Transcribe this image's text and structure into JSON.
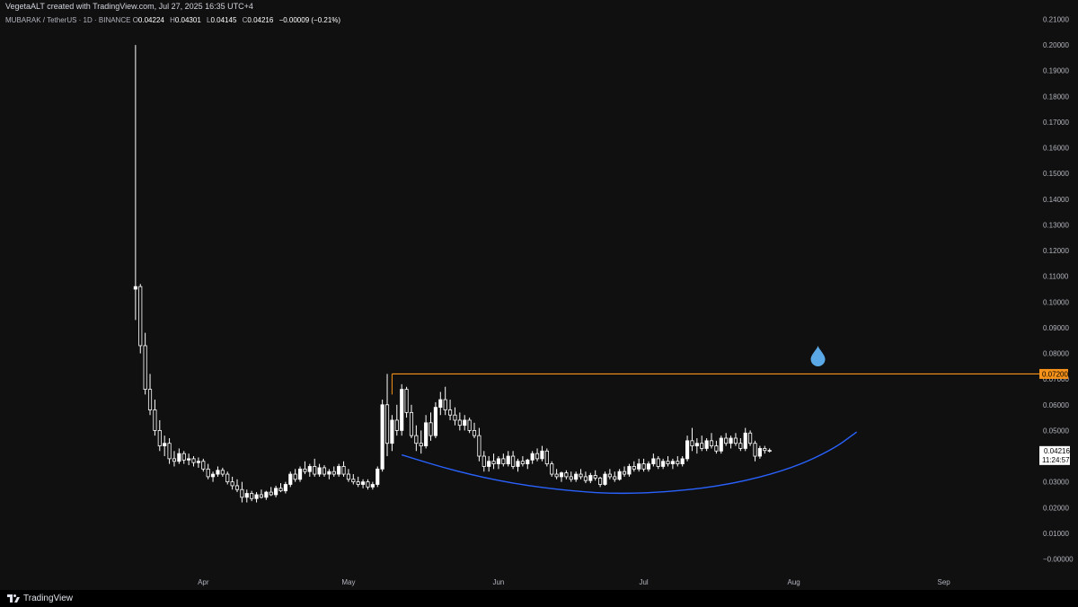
{
  "header": {
    "created_by": "VegetaALT created with TradingView.com, Jul 27, 2025 16:35 UTC+4"
  },
  "symbol": {
    "name": "MUBARAK / TetherUS · 1D · BINANCE",
    "o_key": "O",
    "o_val": "0.04224",
    "h_key": "H",
    "h_val": "0.04301",
    "l_key": "L",
    "l_val": "0.04145",
    "c_key": "C",
    "c_val": "0.04216",
    "change": "−0.00009 (−0.21%)"
  },
  "brand": {
    "label": "TradingView"
  },
  "colors": {
    "background": "#101010",
    "candle": "#ffffff",
    "resistance_line": "#f7931a",
    "curve": "#2962ff",
    "drop_icon": "#5aa9e6",
    "price_badge": "#f7931a"
  },
  "icons": {
    "drop": "water-drop-icon"
  },
  "chart_data": {
    "type": "candlestick",
    "y_ticks": [
      "0.21000",
      "0.20000",
      "0.19000",
      "0.18000",
      "0.17000",
      "0.16000",
      "0.15000",
      "0.14000",
      "0.13000",
      "0.12000",
      "0.11000",
      "0.10000",
      "0.09000",
      "0.08000",
      "0.07000",
      "0.06000",
      "0.05000",
      "0.04000",
      "0.03000",
      "0.02000",
      "0.01000",
      "−0.00000"
    ],
    "x_ticks": [
      {
        "label": "Apr",
        "date": "2025-04-01"
      },
      {
        "label": "May",
        "date": "2025-05-01"
      },
      {
        "label": "Jun",
        "date": "2025-06-01"
      },
      {
        "label": "Jul",
        "date": "2025-07-01"
      },
      {
        "label": "Aug",
        "date": "2025-08-01"
      },
      {
        "label": "Sep",
        "date": "2025-09-01"
      }
    ],
    "ylim": [
      0.0,
      0.21
    ],
    "xlim": [
      "2025-02-18",
      "2025-09-20"
    ],
    "grid": false,
    "resistance": {
      "value": 0.072,
      "label": "0.07200",
      "from": "2025-05-10"
    },
    "last_price": {
      "value": 0.04216,
      "label": "0.04216",
      "countdown": "11:24:57"
    },
    "curve_points": [
      {
        "date": "2025-05-12",
        "value": 0.0405
      },
      {
        "date": "2025-05-23",
        "value": 0.0342
      },
      {
        "date": "2025-06-04",
        "value": 0.0293
      },
      {
        "date": "2025-06-16",
        "value": 0.0264
      },
      {
        "date": "2025-06-26",
        "value": 0.0253
      },
      {
        "date": "2025-07-07",
        "value": 0.0262
      },
      {
        "date": "2025-07-19",
        "value": 0.029
      },
      {
        "date": "2025-07-31",
        "value": 0.0348
      },
      {
        "date": "2025-08-09",
        "value": 0.0425
      },
      {
        "date": "2025-08-14",
        "value": 0.0494
      }
    ],
    "ohlc": [
      {
        "date": "2025-03-18",
        "o": 0.105,
        "h": 0.2,
        "l": 0.093,
        "c": 0.106
      },
      {
        "date": "2025-03-19",
        "o": 0.106,
        "h": 0.107,
        "l": 0.08,
        "c": 0.083
      },
      {
        "date": "2025-03-20",
        "o": 0.083,
        "h": 0.088,
        "l": 0.064,
        "c": 0.066
      },
      {
        "date": "2025-03-21",
        "o": 0.066,
        "h": 0.072,
        "l": 0.056,
        "c": 0.058
      },
      {
        "date": "2025-03-22",
        "o": 0.058,
        "h": 0.062,
        "l": 0.048,
        "c": 0.05
      },
      {
        "date": "2025-03-23",
        "o": 0.05,
        "h": 0.054,
        "l": 0.042,
        "c": 0.044
      },
      {
        "date": "2025-03-24",
        "o": 0.044,
        "h": 0.048,
        "l": 0.04,
        "c": 0.045
      },
      {
        "date": "2025-03-25",
        "o": 0.045,
        "h": 0.047,
        "l": 0.037,
        "c": 0.039
      },
      {
        "date": "2025-03-26",
        "o": 0.039,
        "h": 0.042,
        "l": 0.036,
        "c": 0.038
      },
      {
        "date": "2025-03-27",
        "o": 0.038,
        "h": 0.043,
        "l": 0.037,
        "c": 0.041
      },
      {
        "date": "2025-03-28",
        "o": 0.041,
        "h": 0.042,
        "l": 0.037,
        "c": 0.0385
      },
      {
        "date": "2025-03-29",
        "o": 0.0385,
        "h": 0.041,
        "l": 0.0365,
        "c": 0.039
      },
      {
        "date": "2025-03-30",
        "o": 0.039,
        "h": 0.04,
        "l": 0.036,
        "c": 0.0375
      },
      {
        "date": "2025-03-31",
        "o": 0.0375,
        "h": 0.0395,
        "l": 0.0355,
        "c": 0.038
      },
      {
        "date": "2025-04-01",
        "o": 0.038,
        "h": 0.039,
        "l": 0.034,
        "c": 0.035
      },
      {
        "date": "2025-04-02",
        "o": 0.035,
        "h": 0.037,
        "l": 0.031,
        "c": 0.032
      },
      {
        "date": "2025-04-03",
        "o": 0.032,
        "h": 0.034,
        "l": 0.03,
        "c": 0.033
      },
      {
        "date": "2025-04-04",
        "o": 0.033,
        "h": 0.036,
        "l": 0.032,
        "c": 0.0345
      },
      {
        "date": "2025-04-05",
        "o": 0.0345,
        "h": 0.0355,
        "l": 0.032,
        "c": 0.033
      },
      {
        "date": "2025-04-06",
        "o": 0.033,
        "h": 0.034,
        "l": 0.029,
        "c": 0.03
      },
      {
        "date": "2025-04-07",
        "o": 0.03,
        "h": 0.032,
        "l": 0.027,
        "c": 0.0285
      },
      {
        "date": "2025-04-08",
        "o": 0.0285,
        "h": 0.031,
        "l": 0.026,
        "c": 0.027
      },
      {
        "date": "2025-04-09",
        "o": 0.027,
        "h": 0.03,
        "l": 0.022,
        "c": 0.024
      },
      {
        "date": "2025-04-10",
        "o": 0.024,
        "h": 0.027,
        "l": 0.022,
        "c": 0.0255
      },
      {
        "date": "2025-04-11",
        "o": 0.0255,
        "h": 0.0265,
        "l": 0.0225,
        "c": 0.0235
      },
      {
        "date": "2025-04-12",
        "o": 0.0235,
        "h": 0.026,
        "l": 0.022,
        "c": 0.025
      },
      {
        "date": "2025-04-13",
        "o": 0.025,
        "h": 0.027,
        "l": 0.0235,
        "c": 0.024
      },
      {
        "date": "2025-04-14",
        "o": 0.024,
        "h": 0.0265,
        "l": 0.023,
        "c": 0.026
      },
      {
        "date": "2025-04-15",
        "o": 0.026,
        "h": 0.028,
        "l": 0.0245,
        "c": 0.025
      },
      {
        "date": "2025-04-16",
        "o": 0.025,
        "h": 0.0285,
        "l": 0.024,
        "c": 0.0275
      },
      {
        "date": "2025-04-17",
        "o": 0.0275,
        "h": 0.0295,
        "l": 0.026,
        "c": 0.0265
      },
      {
        "date": "2025-04-18",
        "o": 0.0265,
        "h": 0.03,
        "l": 0.0255,
        "c": 0.029
      },
      {
        "date": "2025-04-19",
        "o": 0.029,
        "h": 0.034,
        "l": 0.028,
        "c": 0.033
      },
      {
        "date": "2025-04-20",
        "o": 0.033,
        "h": 0.035,
        "l": 0.03,
        "c": 0.031
      },
      {
        "date": "2025-04-21",
        "o": 0.031,
        "h": 0.036,
        "l": 0.03,
        "c": 0.035
      },
      {
        "date": "2025-04-22",
        "o": 0.035,
        "h": 0.038,
        "l": 0.033,
        "c": 0.034
      },
      {
        "date": "2025-04-23",
        "o": 0.034,
        "h": 0.037,
        "l": 0.032,
        "c": 0.036
      },
      {
        "date": "2025-04-24",
        "o": 0.036,
        "h": 0.039,
        "l": 0.032,
        "c": 0.033
      },
      {
        "date": "2025-04-25",
        "o": 0.033,
        "h": 0.037,
        "l": 0.032,
        "c": 0.0355
      },
      {
        "date": "2025-04-26",
        "o": 0.0355,
        "h": 0.0365,
        "l": 0.032,
        "c": 0.033
      },
      {
        "date": "2025-04-27",
        "o": 0.033,
        "h": 0.035,
        "l": 0.031,
        "c": 0.034
      },
      {
        "date": "2025-04-28",
        "o": 0.034,
        "h": 0.036,
        "l": 0.032,
        "c": 0.033
      },
      {
        "date": "2025-04-29",
        "o": 0.033,
        "h": 0.037,
        "l": 0.032,
        "c": 0.036
      },
      {
        "date": "2025-04-30",
        "o": 0.036,
        "h": 0.038,
        "l": 0.032,
        "c": 0.033
      },
      {
        "date": "2025-05-01",
        "o": 0.033,
        "h": 0.035,
        "l": 0.03,
        "c": 0.031
      },
      {
        "date": "2025-05-02",
        "o": 0.031,
        "h": 0.033,
        "l": 0.029,
        "c": 0.03
      },
      {
        "date": "2025-05-03",
        "o": 0.03,
        "h": 0.032,
        "l": 0.028,
        "c": 0.029
      },
      {
        "date": "2025-05-04",
        "o": 0.029,
        "h": 0.031,
        "l": 0.0275,
        "c": 0.03
      },
      {
        "date": "2025-05-05",
        "o": 0.03,
        "h": 0.031,
        "l": 0.027,
        "c": 0.028
      },
      {
        "date": "2025-05-06",
        "o": 0.028,
        "h": 0.03,
        "l": 0.027,
        "c": 0.029
      },
      {
        "date": "2025-05-07",
        "o": 0.029,
        "h": 0.036,
        "l": 0.028,
        "c": 0.035
      },
      {
        "date": "2025-05-08",
        "o": 0.035,
        "h": 0.062,
        "l": 0.034,
        "c": 0.06
      },
      {
        "date": "2025-05-09",
        "o": 0.06,
        "h": 0.072,
        "l": 0.04,
        "c": 0.045
      },
      {
        "date": "2025-05-10",
        "o": 0.045,
        "h": 0.056,
        "l": 0.042,
        "c": 0.054
      },
      {
        "date": "2025-05-11",
        "o": 0.054,
        "h": 0.06,
        "l": 0.048,
        "c": 0.05
      },
      {
        "date": "2025-05-12",
        "o": 0.05,
        "h": 0.068,
        "l": 0.048,
        "c": 0.066
      },
      {
        "date": "2025-05-13",
        "o": 0.066,
        "h": 0.067,
        "l": 0.055,
        "c": 0.057
      },
      {
        "date": "2025-05-14",
        "o": 0.057,
        "h": 0.06,
        "l": 0.047,
        "c": 0.048
      },
      {
        "date": "2025-05-15",
        "o": 0.048,
        "h": 0.052,
        "l": 0.042,
        "c": 0.045
      },
      {
        "date": "2025-05-16",
        "o": 0.045,
        "h": 0.05,
        "l": 0.041,
        "c": 0.044
      },
      {
        "date": "2025-05-17",
        "o": 0.044,
        "h": 0.056,
        "l": 0.043,
        "c": 0.053
      },
      {
        "date": "2025-05-18",
        "o": 0.053,
        "h": 0.057,
        "l": 0.046,
        "c": 0.048
      },
      {
        "date": "2025-05-19",
        "o": 0.048,
        "h": 0.061,
        "l": 0.047,
        "c": 0.059
      },
      {
        "date": "2025-05-20",
        "o": 0.059,
        "h": 0.065,
        "l": 0.056,
        "c": 0.062
      },
      {
        "date": "2025-05-21",
        "o": 0.062,
        "h": 0.067,
        "l": 0.056,
        "c": 0.058
      },
      {
        "date": "2025-05-22",
        "o": 0.058,
        "h": 0.062,
        "l": 0.054,
        "c": 0.056
      },
      {
        "date": "2025-05-23",
        "o": 0.056,
        "h": 0.059,
        "l": 0.052,
        "c": 0.054
      },
      {
        "date": "2025-05-24",
        "o": 0.054,
        "h": 0.057,
        "l": 0.05,
        "c": 0.052
      },
      {
        "date": "2025-05-25",
        "o": 0.052,
        "h": 0.056,
        "l": 0.05,
        "c": 0.054
      },
      {
        "date": "2025-05-26",
        "o": 0.054,
        "h": 0.055,
        "l": 0.049,
        "c": 0.05
      },
      {
        "date": "2025-05-27",
        "o": 0.05,
        "h": 0.053,
        "l": 0.047,
        "c": 0.048
      },
      {
        "date": "2025-05-28",
        "o": 0.048,
        "h": 0.051,
        "l": 0.038,
        "c": 0.04
      },
      {
        "date": "2025-05-29",
        "o": 0.04,
        "h": 0.042,
        "l": 0.034,
        "c": 0.036
      },
      {
        "date": "2025-05-30",
        "o": 0.036,
        "h": 0.04,
        "l": 0.034,
        "c": 0.038
      },
      {
        "date": "2025-05-31",
        "o": 0.038,
        "h": 0.041,
        "l": 0.035,
        "c": 0.037
      },
      {
        "date": "2025-06-01",
        "o": 0.037,
        "h": 0.04,
        "l": 0.035,
        "c": 0.039
      },
      {
        "date": "2025-06-02",
        "o": 0.039,
        "h": 0.041,
        "l": 0.036,
        "c": 0.037
      },
      {
        "date": "2025-06-03",
        "o": 0.037,
        "h": 0.042,
        "l": 0.036,
        "c": 0.04
      },
      {
        "date": "2025-06-04",
        "o": 0.04,
        "h": 0.042,
        "l": 0.035,
        "c": 0.036
      },
      {
        "date": "2025-06-05",
        "o": 0.036,
        "h": 0.039,
        "l": 0.034,
        "c": 0.038
      },
      {
        "date": "2025-06-06",
        "o": 0.038,
        "h": 0.04,
        "l": 0.036,
        "c": 0.037
      },
      {
        "date": "2025-06-07",
        "o": 0.037,
        "h": 0.039,
        "l": 0.035,
        "c": 0.0385
      },
      {
        "date": "2025-06-08",
        "o": 0.0385,
        "h": 0.042,
        "l": 0.037,
        "c": 0.041
      },
      {
        "date": "2025-06-09",
        "o": 0.041,
        "h": 0.043,
        "l": 0.038,
        "c": 0.039
      },
      {
        "date": "2025-06-10",
        "o": 0.039,
        "h": 0.044,
        "l": 0.038,
        "c": 0.042
      },
      {
        "date": "2025-06-11",
        "o": 0.042,
        "h": 0.043,
        "l": 0.036,
        "c": 0.037
      },
      {
        "date": "2025-06-12",
        "o": 0.037,
        "h": 0.038,
        "l": 0.032,
        "c": 0.033
      },
      {
        "date": "2025-06-13",
        "o": 0.033,
        "h": 0.035,
        "l": 0.031,
        "c": 0.032
      },
      {
        "date": "2025-06-14",
        "o": 0.032,
        "h": 0.034,
        "l": 0.03,
        "c": 0.0335
      },
      {
        "date": "2025-06-15",
        "o": 0.0335,
        "h": 0.0345,
        "l": 0.031,
        "c": 0.032
      },
      {
        "date": "2025-06-16",
        "o": 0.032,
        "h": 0.034,
        "l": 0.03,
        "c": 0.031
      },
      {
        "date": "2025-06-17",
        "o": 0.031,
        "h": 0.034,
        "l": 0.03,
        "c": 0.033
      },
      {
        "date": "2025-06-18",
        "o": 0.033,
        "h": 0.035,
        "l": 0.031,
        "c": 0.032
      },
      {
        "date": "2025-06-19",
        "o": 0.032,
        "h": 0.034,
        "l": 0.0295,
        "c": 0.0305
      },
      {
        "date": "2025-06-20",
        "o": 0.0305,
        "h": 0.0335,
        "l": 0.0295,
        "c": 0.0325
      },
      {
        "date": "2025-06-21",
        "o": 0.0325,
        "h": 0.0345,
        "l": 0.0305,
        "c": 0.0315
      },
      {
        "date": "2025-06-22",
        "o": 0.0315,
        "h": 0.032,
        "l": 0.028,
        "c": 0.029
      },
      {
        "date": "2025-06-23",
        "o": 0.029,
        "h": 0.034,
        "l": 0.0285,
        "c": 0.033
      },
      {
        "date": "2025-06-24",
        "o": 0.033,
        "h": 0.035,
        "l": 0.031,
        "c": 0.032
      },
      {
        "date": "2025-06-25",
        "o": 0.032,
        "h": 0.034,
        "l": 0.03,
        "c": 0.031
      },
      {
        "date": "2025-06-26",
        "o": 0.031,
        "h": 0.035,
        "l": 0.0305,
        "c": 0.034
      },
      {
        "date": "2025-06-27",
        "o": 0.034,
        "h": 0.036,
        "l": 0.032,
        "c": 0.033
      },
      {
        "date": "2025-06-28",
        "o": 0.033,
        "h": 0.037,
        "l": 0.032,
        "c": 0.036
      },
      {
        "date": "2025-06-29",
        "o": 0.036,
        "h": 0.038,
        "l": 0.034,
        "c": 0.035
      },
      {
        "date": "2025-06-30",
        "o": 0.035,
        "h": 0.039,
        "l": 0.034,
        "c": 0.037
      },
      {
        "date": "2025-07-01",
        "o": 0.037,
        "h": 0.039,
        "l": 0.034,
        "c": 0.035
      },
      {
        "date": "2025-07-02",
        "o": 0.035,
        "h": 0.038,
        "l": 0.034,
        "c": 0.037
      },
      {
        "date": "2025-07-03",
        "o": 0.037,
        "h": 0.041,
        "l": 0.036,
        "c": 0.039
      },
      {
        "date": "2025-07-04",
        "o": 0.039,
        "h": 0.04,
        "l": 0.035,
        "c": 0.036
      },
      {
        "date": "2025-07-05",
        "o": 0.036,
        "h": 0.039,
        "l": 0.035,
        "c": 0.038
      },
      {
        "date": "2025-07-06",
        "o": 0.038,
        "h": 0.04,
        "l": 0.036,
        "c": 0.037
      },
      {
        "date": "2025-07-07",
        "o": 0.037,
        "h": 0.039,
        "l": 0.035,
        "c": 0.038
      },
      {
        "date": "2025-07-08",
        "o": 0.038,
        "h": 0.04,
        "l": 0.036,
        "c": 0.037
      },
      {
        "date": "2025-07-09",
        "o": 0.037,
        "h": 0.04,
        "l": 0.036,
        "c": 0.039
      },
      {
        "date": "2025-07-10",
        "o": 0.039,
        "h": 0.048,
        "l": 0.038,
        "c": 0.046
      },
      {
        "date": "2025-07-11",
        "o": 0.046,
        "h": 0.051,
        "l": 0.042,
        "c": 0.044
      },
      {
        "date": "2025-07-12",
        "o": 0.044,
        "h": 0.047,
        "l": 0.041,
        "c": 0.045
      },
      {
        "date": "2025-07-13",
        "o": 0.045,
        "h": 0.048,
        "l": 0.042,
        "c": 0.043
      },
      {
        "date": "2025-07-14",
        "o": 0.043,
        "h": 0.047,
        "l": 0.042,
        "c": 0.046
      },
      {
        "date": "2025-07-15",
        "o": 0.046,
        "h": 0.049,
        "l": 0.043,
        "c": 0.044
      },
      {
        "date": "2025-07-16",
        "o": 0.044,
        "h": 0.046,
        "l": 0.041,
        "c": 0.042
      },
      {
        "date": "2025-07-17",
        "o": 0.042,
        "h": 0.048,
        "l": 0.041,
        "c": 0.047
      },
      {
        "date": "2025-07-18",
        "o": 0.047,
        "h": 0.049,
        "l": 0.044,
        "c": 0.045
      },
      {
        "date": "2025-07-19",
        "o": 0.045,
        "h": 0.048,
        "l": 0.043,
        "c": 0.047
      },
      {
        "date": "2025-07-20",
        "o": 0.047,
        "h": 0.049,
        "l": 0.044,
        "c": 0.045
      },
      {
        "date": "2025-07-21",
        "o": 0.045,
        "h": 0.047,
        "l": 0.042,
        "c": 0.043
      },
      {
        "date": "2025-07-22",
        "o": 0.043,
        "h": 0.051,
        "l": 0.042,
        "c": 0.049
      },
      {
        "date": "2025-07-23",
        "o": 0.049,
        "h": 0.05,
        "l": 0.044,
        "c": 0.045
      },
      {
        "date": "2025-07-24",
        "o": 0.045,
        "h": 0.046,
        "l": 0.038,
        "c": 0.04
      },
      {
        "date": "2025-07-25",
        "o": 0.04,
        "h": 0.044,
        "l": 0.039,
        "c": 0.043
      },
      {
        "date": "2025-07-26",
        "o": 0.043,
        "h": 0.044,
        "l": 0.041,
        "c": 0.0422
      },
      {
        "date": "2025-07-27",
        "o": 0.04224,
        "h": 0.04301,
        "l": 0.04145,
        "c": 0.04216
      }
    ]
  }
}
